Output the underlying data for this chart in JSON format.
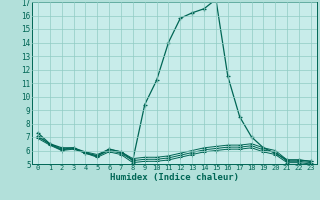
{
  "title": "",
  "xlabel": "Humidex (Indice chaleur)",
  "bg_color": "#b2e0da",
  "plot_bg_color": "#c8ecea",
  "grid_color": "#90ccc4",
  "line_color": "#006655",
  "label_bg_color": "#5ab0a8",
  "xlim": [
    -0.5,
    23.5
  ],
  "ylim": [
    5,
    17
  ],
  "x_ticks": [
    0,
    1,
    2,
    3,
    4,
    5,
    6,
    7,
    8,
    9,
    10,
    11,
    12,
    13,
    14,
    15,
    16,
    17,
    18,
    19,
    20,
    21,
    22,
    23
  ],
  "y_ticks": [
    5,
    6,
    7,
    8,
    9,
    10,
    11,
    12,
    13,
    14,
    15,
    16,
    17
  ],
  "curves": {
    "main": {
      "x": [
        0,
        1,
        2,
        3,
        4,
        5,
        6,
        7,
        8,
        9,
        10,
        11,
        12,
        13,
        14,
        15,
        16,
        17,
        18,
        19,
        20,
        21,
        22,
        23
      ],
      "y": [
        7.3,
        6.5,
        6.2,
        6.2,
        5.8,
        5.6,
        6.1,
        5.9,
        5.3,
        9.4,
        11.2,
        14.0,
        15.8,
        16.2,
        16.5,
        17.2,
        11.5,
        8.5,
        7.0,
        6.2,
        5.8,
        5.3,
        5.3,
        5.2
      ]
    },
    "line2": {
      "x": [
        0,
        1,
        2,
        3,
        4,
        5,
        6,
        7,
        8,
        9,
        10,
        11,
        12,
        13,
        14,
        15,
        16,
        17,
        18,
        19,
        20,
        21,
        22,
        23
      ],
      "y": [
        7.0,
        6.5,
        6.1,
        6.2,
        5.9,
        5.7,
        6.1,
        5.9,
        5.4,
        5.5,
        5.5,
        5.6,
        5.8,
        6.0,
        6.2,
        6.3,
        6.4,
        6.4,
        6.5,
        6.2,
        6.0,
        5.3,
        5.3,
        5.2
      ]
    },
    "line3": {
      "x": [
        0,
        1,
        2,
        3,
        4,
        5,
        6,
        7,
        8,
        9,
        10,
        11,
        12,
        13,
        14,
        15,
        16,
        17,
        18,
        19,
        20,
        21,
        22,
        23
      ],
      "y": [
        6.9,
        6.4,
        6.0,
        6.1,
        5.8,
        5.5,
        5.9,
        5.7,
        5.1,
        5.2,
        5.2,
        5.3,
        5.5,
        5.7,
        5.9,
        6.0,
        6.1,
        6.1,
        6.2,
        5.9,
        5.7,
        5.1,
        5.1,
        5.0
      ]
    },
    "line4": {
      "x": [
        0,
        1,
        2,
        3,
        4,
        5,
        6,
        7,
        8,
        9,
        10,
        11,
        12,
        13,
        14,
        15,
        16,
        17,
        18,
        19,
        20,
        21,
        22,
        23
      ],
      "y": [
        7.1,
        6.45,
        6.05,
        6.15,
        5.85,
        5.6,
        6.0,
        5.8,
        5.25,
        5.35,
        5.35,
        5.45,
        5.65,
        5.85,
        6.05,
        6.15,
        6.25,
        6.25,
        6.35,
        6.05,
        5.85,
        5.2,
        5.2,
        5.1
      ]
    }
  }
}
